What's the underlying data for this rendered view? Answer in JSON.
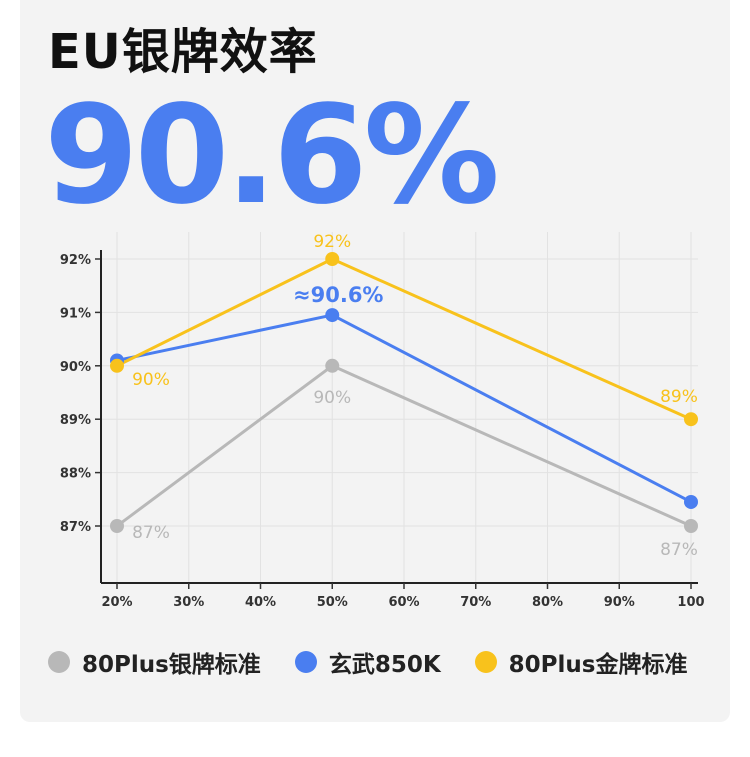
{
  "header": {
    "title": "EU银牌效率",
    "headline_value": "90.6%"
  },
  "chart_data": {
    "type": "line",
    "categories": [
      "20%",
      "30%",
      "40%",
      "50%",
      "60%",
      "70%",
      "80%",
      "90%",
      "100"
    ],
    "ylim": [
      86,
      92.3
    ],
    "yticks": [
      92,
      91,
      90,
      89,
      88,
      87
    ],
    "ytick_labels": [
      "92%",
      "91%",
      "90%",
      "89%",
      "88%",
      "87%"
    ],
    "grid": true,
    "legend_position": "bottom",
    "series": [
      {
        "name": "80Plus银牌标准",
        "color": "#b8b8b8",
        "points": [
          {
            "x": "20%",
            "y": 87
          },
          {
            "x": "50%",
            "y": 90
          },
          {
            "x": "100",
            "y": 87
          }
        ],
        "labels": [
          {
            "x": "20%",
            "text": "87%"
          },
          {
            "x": "50%",
            "text": "90%"
          },
          {
            "x": "100",
            "text": "87%"
          }
        ]
      },
      {
        "name": "玄武850K",
        "color": "#4a7ef0",
        "points": [
          {
            "x": "20%",
            "y": 90.1
          },
          {
            "x": "50%",
            "y": 90.95
          },
          {
            "x": "100",
            "y": 87.45
          }
        ],
        "labels": [
          {
            "x": "50%",
            "text": "≈90.6%"
          }
        ]
      },
      {
        "name": "80Plus金牌标准",
        "color": "#f8c21c",
        "points": [
          {
            "x": "20%",
            "y": 90
          },
          {
            "x": "50%",
            "y": 92
          },
          {
            "x": "100",
            "y": 89
          }
        ],
        "labels": [
          {
            "x": "20%",
            "text": "90%"
          },
          {
            "x": "50%",
            "text": "92%"
          },
          {
            "x": "100",
            "text": "89%"
          }
        ]
      }
    ]
  }
}
